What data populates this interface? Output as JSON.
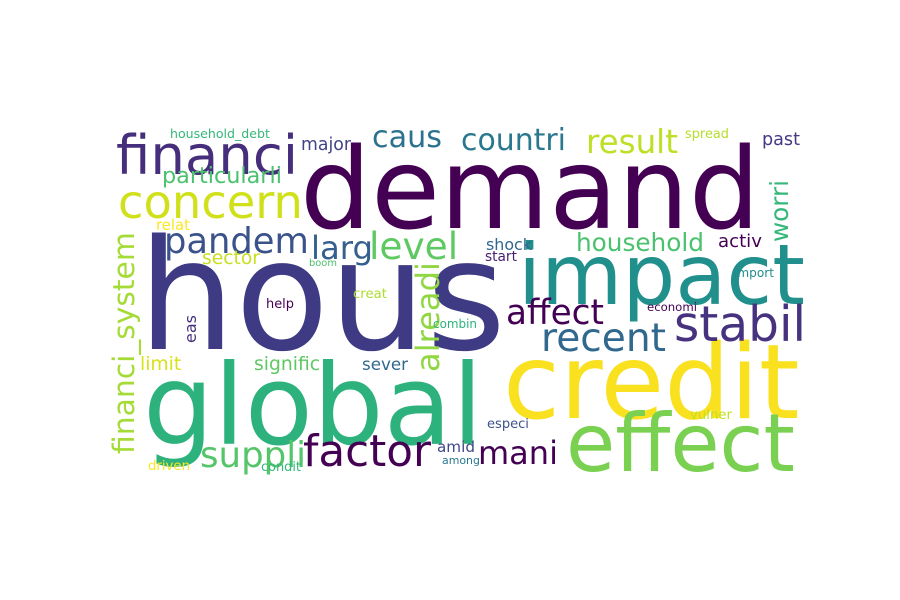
{
  "words": [
    {
      "text": "demand",
      "color": "#440154"
    },
    {
      "text": "hous",
      "color": "#3e3a84"
    },
    {
      "text": "global",
      "color": "#2db27d"
    },
    {
      "text": "credit",
      "color": "#f9e11f"
    },
    {
      "text": "impact",
      "color": "#21908d"
    },
    {
      "text": "effect",
      "color": "#7ad151"
    },
    {
      "text": "financi",
      "color": "#472e7c"
    },
    {
      "text": "concern",
      "color": "#d0e11c"
    },
    {
      "text": "pandem",
      "color": "#3b528b"
    },
    {
      "text": "recent",
      "color": "#31688e"
    },
    {
      "text": "stabil",
      "color": "#46327e"
    },
    {
      "text": "factor",
      "color": "#440154"
    },
    {
      "text": "affect",
      "color": "#440154"
    },
    {
      "text": "mani",
      "color": "#440154"
    },
    {
      "text": "suppli",
      "color": "#54c568"
    },
    {
      "text": "countri",
      "color": "#2a788e"
    },
    {
      "text": "result",
      "color": "#bddf26"
    },
    {
      "text": "caus",
      "color": "#2c728e"
    },
    {
      "text": "financi_system",
      "color": "#a5db36"
    },
    {
      "text": "alreadi",
      "color": "#90d743"
    },
    {
      "text": "level",
      "color": "#5ec962"
    },
    {
      "text": "larg",
      "color": "#355f8d"
    },
    {
      "text": "household",
      "color": "#4ac16d"
    },
    {
      "text": "worri",
      "color": "#35b779"
    },
    {
      "text": "major",
      "color": "#414487"
    },
    {
      "text": "past",
      "color": "#443983"
    },
    {
      "text": "particularli",
      "color": "#4ac16d"
    },
    {
      "text": "household_debt",
      "color": "#35b779"
    },
    {
      "text": "spread",
      "color": "#b5de2b"
    },
    {
      "text": "shock",
      "color": "#31688e"
    },
    {
      "text": "activ",
      "color": "#440154"
    },
    {
      "text": "sector",
      "color": "#c8e020"
    },
    {
      "text": "boom",
      "color": "#4ac16d"
    },
    {
      "text": "start",
      "color": "#482173"
    },
    {
      "text": "import",
      "color": "#218e8d"
    },
    {
      "text": "relat",
      "color": "#fde725"
    },
    {
      "text": "creat",
      "color": "#addc30"
    },
    {
      "text": "help",
      "color": "#440154"
    },
    {
      "text": "eas",
      "color": "#46327e"
    },
    {
      "text": "combin",
      "color": "#2db27d"
    },
    {
      "text": "economi",
      "color": "#440154"
    },
    {
      "text": "limit",
      "color": "#d8e219"
    },
    {
      "text": "signific",
      "color": "#5ec962"
    },
    {
      "text": "sever",
      "color": "#31688e"
    },
    {
      "text": "amid",
      "color": "#3e4989"
    },
    {
      "text": "among",
      "color": "#2a788e"
    },
    {
      "text": "especi",
      "color": "#3b528b"
    },
    {
      "text": "vulner",
      "color": "#c2df23"
    },
    {
      "text": "driven",
      "color": "#fde725"
    },
    {
      "text": "condit",
      "color": "#35b779"
    }
  ]
}
